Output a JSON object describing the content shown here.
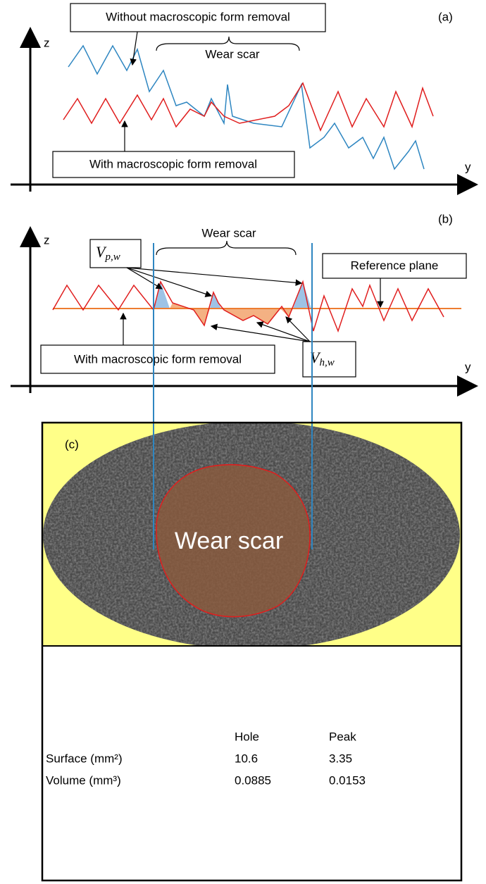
{
  "panel_a": {
    "label": "(a)",
    "z_axis": "z",
    "y_axis": "y",
    "top_box": "Without macroscopic form removal",
    "bracket": "Wear scar",
    "bottom_box": "With macroscopic form removal"
  },
  "panel_b": {
    "label": "(b)",
    "z_axis": "z",
    "y_axis": "y",
    "peak_box": {
      "symbol": "V",
      "subscript": "p,w"
    },
    "bracket": "Wear scar",
    "reference_box": "Reference plane",
    "bottom_box": "With macroscopic form removal",
    "hole_box": {
      "symbol": "V",
      "subscript": "h,w"
    }
  },
  "panel_c": {
    "label": "(c)",
    "scar_label": "Wear scar"
  },
  "table": {
    "columns": [
      "Hole",
      "Peak"
    ],
    "rows": [
      {
        "label": "Surface (mm²)",
        "values": [
          "10.6",
          "3.35"
        ]
      },
      {
        "label": "Volume (mm³)",
        "values": [
          "0.0885",
          "0.0153"
        ]
      }
    ]
  }
}
